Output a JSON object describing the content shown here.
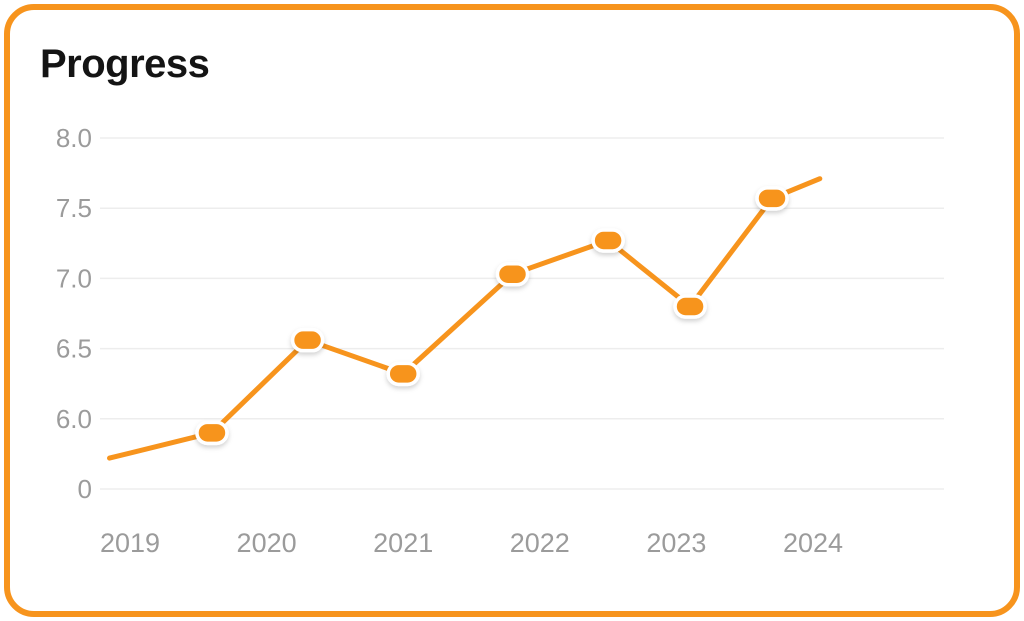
{
  "colors": {
    "accent": "#F7941D",
    "title": "#141414",
    "axis_label": "#9B9B9B",
    "grid": "#EDEDED",
    "marker_ring": "#FFFFFF",
    "card_background": "#FFFFFF"
  },
  "chart_data": {
    "type": "line",
    "title": "Progress",
    "xlabel": "",
    "ylabel": "",
    "x_ticks": [
      "2019",
      "2020",
      "2021",
      "2022",
      "2023",
      "2024"
    ],
    "y_ticks": [
      "8.0",
      "7.5",
      "7.0",
      "6.5",
      "6.0",
      "0"
    ],
    "ylim": [
      5.5,
      8.0
    ],
    "xlim": [
      2018.75,
      2024.2
    ],
    "grid": true,
    "legend": false,
    "line_color": "#F7941D",
    "series": [
      {
        "name": "Progress",
        "points": [
          {
            "x": 2018.85,
            "y": 5.72,
            "marker": false
          },
          {
            "x": 2019.6,
            "y": 5.9,
            "marker": true
          },
          {
            "x": 2020.3,
            "y": 6.56,
            "marker": true
          },
          {
            "x": 2021.0,
            "y": 6.32,
            "marker": true
          },
          {
            "x": 2021.8,
            "y": 7.03,
            "marker": true
          },
          {
            "x": 2022.5,
            "y": 7.27,
            "marker": true
          },
          {
            "x": 2023.1,
            "y": 6.8,
            "marker": true
          },
          {
            "x": 2023.7,
            "y": 7.57,
            "marker": true
          },
          {
            "x": 2024.05,
            "y": 7.71,
            "marker": false
          }
        ]
      }
    ]
  }
}
